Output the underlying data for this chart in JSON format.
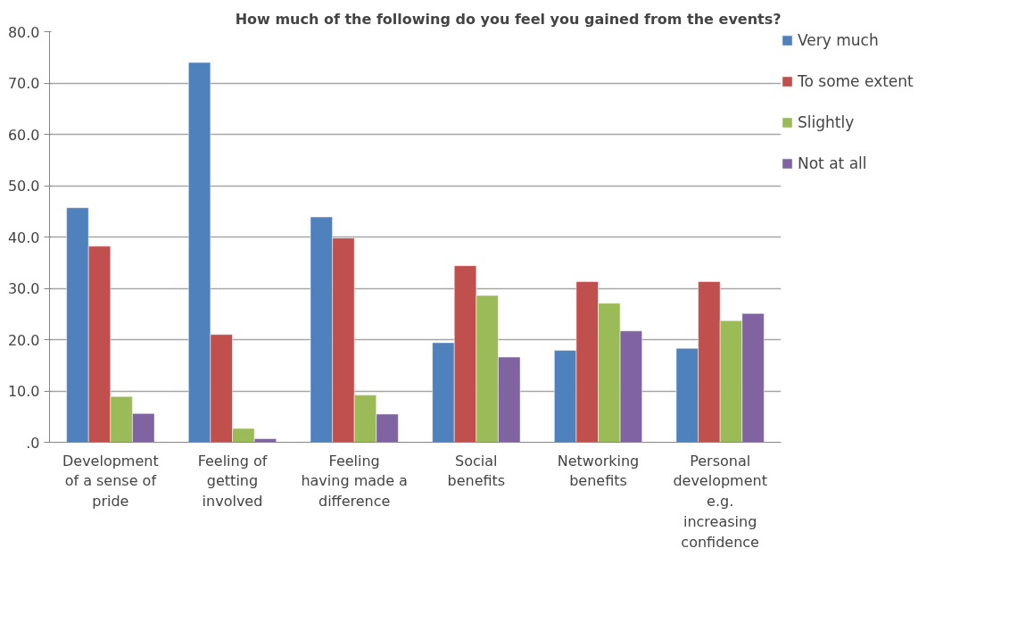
{
  "chart_data": {
    "type": "bar",
    "title": "How much of the following do you feel you gained from the events?",
    "categories": [
      "Development of a sense of pride",
      "Feeling of getting involved",
      "Feeling having made a difference",
      "Social benefits",
      "Networking benefits",
      "Personal development e.g. increasing confidence"
    ],
    "series": [
      {
        "name": "Very much",
        "color": "#4f81bd",
        "values": [
          45.7,
          74.0,
          43.9,
          19.4,
          17.9,
          18.3
        ]
      },
      {
        "name": "To some extent",
        "color": "#c0504d",
        "values": [
          38.2,
          21.0,
          39.8,
          34.4,
          31.3,
          31.3
        ]
      },
      {
        "name": "Slightly",
        "color": "#9bbb59",
        "values": [
          8.9,
          2.7,
          9.2,
          28.6,
          27.1,
          23.7
        ]
      },
      {
        "name": "Not at all",
        "color": "#8064a2",
        "values": [
          5.6,
          0.7,
          5.5,
          16.6,
          21.7,
          25.1
        ]
      }
    ],
    "ylim": [
      0,
      80
    ],
    "yticks": [
      {
        "value": 0,
        "label": ".0"
      },
      {
        "value": 10,
        "label": "10.0"
      },
      {
        "value": 20,
        "label": "20.0"
      },
      {
        "value": 30,
        "label": "30.0"
      },
      {
        "value": 40,
        "label": "40.0"
      },
      {
        "value": 50,
        "label": "50.0"
      },
      {
        "value": 60,
        "label": "60.0"
      },
      {
        "value": 70,
        "label": "70.0"
      },
      {
        "value": 80,
        "label": "80.0"
      }
    ],
    "grid": "y",
    "legend": "right"
  }
}
